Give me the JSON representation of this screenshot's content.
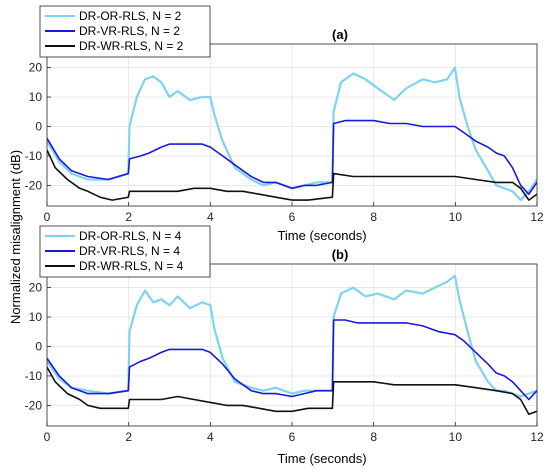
{
  "figure": {
    "ylabel_shared": "Normalized misalignment (dB)"
  },
  "chart_data": [
    {
      "type": "line",
      "title": "(a)",
      "xlabel": "Time (seconds)",
      "ylabel": "",
      "xlim": [
        0,
        12
      ],
      "ylim": [
        -27,
        28
      ],
      "xticks": [
        0,
        2,
        4,
        6,
        8,
        10,
        12
      ],
      "yticks": [
        -20,
        -10,
        0,
        10,
        20
      ],
      "grid": true,
      "legend": "top-left",
      "series": [
        {
          "name": "DR-OR-RLS, N = 2",
          "color": "#7dd3f0",
          "x": [
            0,
            0.3,
            0.6,
            1.0,
            1.5,
            1.99,
            2.02,
            2.2,
            2.4,
            2.6,
            2.8,
            3.0,
            3.2,
            3.5,
            3.8,
            4.0,
            4.1,
            4.3,
            4.6,
            5.0,
            5.3,
            5.6,
            6.0,
            6.3,
            6.6,
            6.99,
            7.02,
            7.2,
            7.5,
            7.8,
            8.1,
            8.5,
            8.8,
            9.2,
            9.5,
            9.8,
            9.99,
            10.1,
            10.3,
            10.5,
            10.8,
            11.0,
            11.2,
            11.4,
            11.6,
            11.8,
            12.0
          ],
          "values": [
            -5,
            -12,
            -16,
            -18,
            -18,
            -16,
            0,
            10,
            16,
            17,
            15,
            10,
            12,
            9,
            10,
            10,
            4,
            -5,
            -14,
            -18,
            -20,
            -19,
            -21,
            -20,
            -19,
            -19,
            5,
            15,
            18,
            16,
            13,
            9,
            13,
            16,
            15,
            16,
            20,
            10,
            0,
            -8,
            -15,
            -20,
            -21,
            -22,
            -25,
            -22,
            -18
          ]
        },
        {
          "name": "DR-VR-RLS, N = 2",
          "color": "#1a1ad6",
          "x": [
            0,
            0.3,
            0.6,
            1.0,
            1.5,
            1.99,
            2.02,
            2.3,
            2.5,
            2.8,
            3.0,
            3.4,
            3.8,
            4.0,
            4.3,
            4.6,
            5.0,
            5.3,
            5.6,
            6.0,
            6.3,
            6.6,
            6.99,
            7.02,
            7.3,
            7.6,
            8.0,
            8.4,
            8.8,
            9.2,
            9.6,
            9.99,
            10.2,
            10.5,
            10.8,
            11.0,
            11.2,
            11.4,
            11.6,
            11.8,
            12.0
          ],
          "values": [
            -4,
            -11,
            -15,
            -17,
            -18,
            -16,
            -11,
            -10,
            -9,
            -7,
            -6,
            -6,
            -6,
            -7,
            -10,
            -13,
            -17,
            -19,
            -19,
            -21,
            -20,
            -20,
            -19,
            1,
            2,
            2,
            2,
            1,
            1,
            0,
            0,
            0,
            -2,
            -5,
            -7,
            -9,
            -10,
            -14,
            -20,
            -23,
            -19
          ]
        },
        {
          "name": "DR-WR-RLS, N = 2",
          "color": "#111111",
          "x": [
            0,
            0.2,
            0.5,
            0.8,
            1.0,
            1.3,
            1.6,
            1.99,
            2.02,
            2.4,
            2.8,
            3.2,
            3.6,
            4.0,
            4.4,
            4.8,
            5.2,
            5.6,
            6.0,
            6.4,
            6.99,
            7.02,
            7.5,
            8.0,
            8.5,
            9.0,
            9.5,
            10.0,
            10.5,
            11.0,
            11.4,
            11.6,
            11.8,
            12.0
          ],
          "values": [
            -8,
            -14,
            -18,
            -21,
            -22,
            -24,
            -25,
            -24,
            -22,
            -22,
            -22,
            -22,
            -21,
            -21,
            -22,
            -22,
            -23,
            -24,
            -25,
            -25,
            -24,
            -16,
            -17,
            -17,
            -17,
            -17,
            -17,
            -17,
            -18,
            -19,
            -19,
            -21,
            -25,
            -23
          ]
        }
      ]
    },
    {
      "type": "line",
      "title": "(b)",
      "xlabel": "Time (seconds)",
      "ylabel": "",
      "xlim": [
        0,
        12
      ],
      "ylim": [
        -27,
        28
      ],
      "xticks": [
        0,
        2,
        4,
        6,
        8,
        10,
        12
      ],
      "yticks": [
        -20,
        -10,
        0,
        10,
        20
      ],
      "grid": true,
      "legend": "top-left",
      "series": [
        {
          "name": "DR-OR-RLS, N = 4",
          "color": "#7dd3f0",
          "x": [
            0,
            0.3,
            0.6,
            1.0,
            1.5,
            1.99,
            2.02,
            2.2,
            2.4,
            2.6,
            2.8,
            3.0,
            3.2,
            3.5,
            3.8,
            4.0,
            4.1,
            4.3,
            4.6,
            5.0,
            5.3,
            5.6,
            6.0,
            6.3,
            6.6,
            6.99,
            7.02,
            7.2,
            7.5,
            7.8,
            8.1,
            8.5,
            8.8,
            9.2,
            9.5,
            9.8,
            9.99,
            10.1,
            10.3,
            10.5,
            10.8,
            11.0,
            11.2,
            11.4,
            11.6,
            11.8,
            12.0
          ],
          "values": [
            -5,
            -11,
            -14,
            -15,
            -16,
            -15,
            5,
            14,
            19,
            15,
            16,
            14,
            17,
            13,
            15,
            14,
            6,
            -4,
            -12,
            -14,
            -15,
            -14,
            -16,
            -15,
            -15,
            -15,
            10,
            18,
            20,
            17,
            18,
            16,
            19,
            18,
            20,
            22,
            24,
            16,
            5,
            -5,
            -12,
            -15,
            -15,
            -16,
            -17,
            -16,
            -15
          ]
        },
        {
          "name": "DR-VR-RLS, N = 4",
          "color": "#1a1ad6",
          "x": [
            0,
            0.3,
            0.6,
            1.0,
            1.5,
            1.99,
            2.02,
            2.3,
            2.5,
            2.8,
            3.0,
            3.4,
            3.8,
            4.0,
            4.3,
            4.6,
            5.0,
            5.3,
            5.6,
            6.0,
            6.3,
            6.6,
            6.99,
            7.02,
            7.3,
            7.6,
            8.0,
            8.4,
            8.8,
            9.2,
            9.6,
            9.99,
            10.2,
            10.5,
            10.8,
            11.0,
            11.2,
            11.4,
            11.6,
            11.8,
            12.0
          ],
          "values": [
            -4,
            -10,
            -14,
            -16,
            -16,
            -15,
            -7,
            -5,
            -4,
            -2,
            -1,
            -1,
            -1,
            -2,
            -6,
            -11,
            -15,
            -16,
            -16,
            -17,
            -16,
            -15,
            -15,
            9,
            9,
            8,
            8,
            8,
            8,
            7,
            5,
            4,
            2,
            -2,
            -6,
            -9,
            -10,
            -12,
            -15,
            -18,
            -15
          ]
        },
        {
          "name": "DR-WR-RLS, N = 4",
          "color": "#111111",
          "x": [
            0,
            0.2,
            0.5,
            0.8,
            1.0,
            1.3,
            1.6,
            1.99,
            2.02,
            2.4,
            2.8,
            3.2,
            3.6,
            4.0,
            4.4,
            4.8,
            5.2,
            5.6,
            6.0,
            6.4,
            6.99,
            7.02,
            7.5,
            8.0,
            8.5,
            9.0,
            9.5,
            10.0,
            10.5,
            11.0,
            11.4,
            11.6,
            11.8,
            12.0
          ],
          "values": [
            -7,
            -12,
            -16,
            -18,
            -20,
            -21,
            -21,
            -21,
            -18,
            -18,
            -18,
            -17,
            -18,
            -19,
            -20,
            -20,
            -21,
            -22,
            -22,
            -21,
            -21,
            -12,
            -12,
            -12,
            -13,
            -13,
            -13,
            -13,
            -14,
            -15,
            -16,
            -18,
            -23,
            -22
          ]
        }
      ]
    }
  ]
}
